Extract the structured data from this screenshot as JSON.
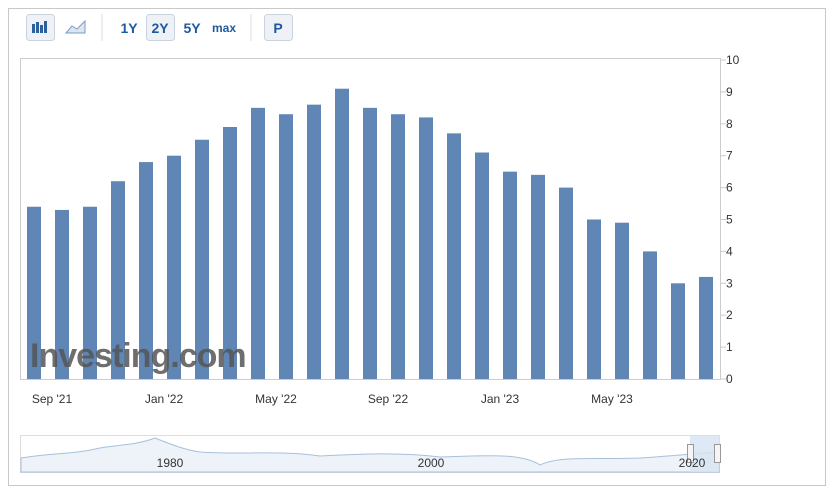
{
  "toolbar": {
    "ranges": [
      "1Y",
      "2Y",
      "5Y",
      "max"
    ],
    "print": "P"
  },
  "chart_data": {
    "type": "bar",
    "categories": [
      null,
      null,
      "Sep '21",
      null,
      null,
      null,
      "Jan '22",
      null,
      null,
      null,
      "May '22",
      null,
      null,
      null,
      "Sep '22",
      null,
      null,
      null,
      "Jan '23",
      null,
      null,
      null,
      "May '23",
      null,
      null
    ],
    "values": [
      5.4,
      5.3,
      5.4,
      6.2,
      6.8,
      7.0,
      7.5,
      7.9,
      8.5,
      8.3,
      8.6,
      9.1,
      8.5,
      8.3,
      8.2,
      7.7,
      7.1,
      6.5,
      6.4,
      6.0,
      5.0,
      4.9,
      4.0,
      3.0,
      3.2
    ],
    "color": "#5f86b4",
    "ylim": [
      0,
      10
    ],
    "yticks": [
      0,
      1,
      2,
      3,
      4,
      5,
      6,
      7,
      8,
      9,
      10
    ],
    "watermark": "Investing.com",
    "navigator_labels": [
      "1980",
      "2000",
      "2020"
    ]
  }
}
